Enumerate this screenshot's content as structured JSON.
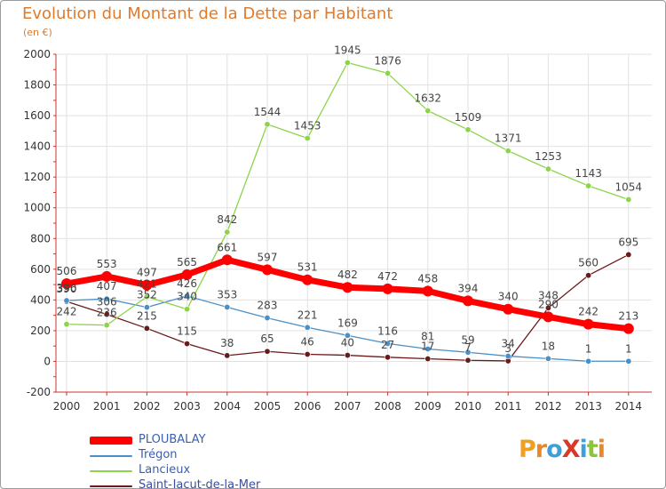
{
  "title": "Evolution du Montant de la Dette par Habitant",
  "unit_label": "(en €)",
  "logo": {
    "text": "ProXiti",
    "letters": [
      {
        "ch": "P",
        "color": "#f0a020"
      },
      {
        "ch": "r",
        "color": "#e8882a"
      },
      {
        "ch": "o",
        "color": "#3fa0d8"
      },
      {
        "ch": "X",
        "color": "#d83a2a"
      },
      {
        "ch": "i",
        "color": "#3fa0d8"
      },
      {
        "ch": "t",
        "color": "#8cc43c"
      },
      {
        "ch": "i",
        "color": "#e8882a"
      }
    ]
  },
  "chart_data": {
    "type": "line",
    "title": "Evolution du Montant de la Dette par Habitant",
    "x": [
      "2000",
      "2001",
      "2002",
      "2003",
      "2004",
      "2005",
      "2006",
      "2007",
      "2008",
      "2009",
      "2010",
      "2011",
      "2012",
      "2013",
      "2014"
    ],
    "ylim": [
      -200,
      2000
    ],
    "yticks": [
      -200,
      0,
      200,
      400,
      600,
      800,
      1000,
      1200,
      1400,
      1600,
      1800,
      2000
    ],
    "grid": true,
    "legend_position": "bottom-left",
    "series": [
      {
        "name": "PLOUBALAY",
        "color": "#ff0000",
        "values": [
          506,
          553,
          497,
          565,
          661,
          597,
          531,
          482,
          472,
          458,
          394,
          340,
          290,
          242,
          213
        ],
        "labels": [
          "506",
          "553",
          "497",
          "565",
          "661",
          "597",
          "531",
          "482",
          "472",
          "458",
          "394",
          "340",
          "290",
          "242",
          "213"
        ]
      },
      {
        "name": "Trégon",
        "color": "#4a90c8",
        "values": [
          396,
          407,
          352,
          426,
          353,
          283,
          221,
          169,
          116,
          81,
          59,
          34,
          18,
          1,
          1
        ],
        "labels": [
          "396",
          "407",
          "352",
          "426",
          "353",
          "283",
          "221",
          "169",
          "116",
          "81",
          "59",
          "34",
          "18",
          "1",
          "1"
        ]
      },
      {
        "name": "Lancieux",
        "color": "#8ed44a",
        "values": [
          242,
          236,
          421,
          340,
          842,
          1544,
          1453,
          1945,
          1876,
          1632,
          1509,
          1371,
          1253,
          1143,
          1054
        ],
        "labels": [
          "242",
          "236",
          "421",
          "340",
          "842",
          "1544",
          "1453",
          "1945",
          "1876",
          "1632",
          "1509",
          "1371",
          "1253",
          "1143",
          "1054"
        ]
      },
      {
        "name": "Saint-Jacut-de-la-Mer",
        "color": "#6b1a1a",
        "values": [
          390,
          306,
          215,
          115,
          38,
          65,
          46,
          40,
          27,
          17,
          7,
          3,
          348,
          560,
          695
        ],
        "labels": [
          "390",
          "306",
          "215",
          "115",
          "38",
          "65",
          "46",
          "40",
          "27",
          "17",
          "7",
          "3",
          "348",
          "560",
          "695"
        ]
      }
    ]
  }
}
